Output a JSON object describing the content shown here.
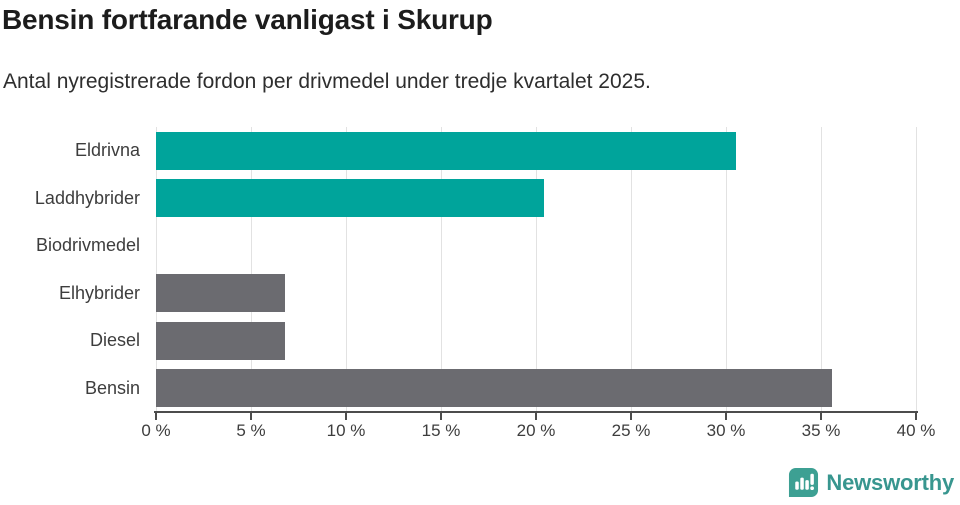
{
  "header": {
    "title": "Bensin fortfarande vanligast i Skurup",
    "subtitle": "Antal nyregistrerade fordon per drivmedel under tredje kvartalet 2025."
  },
  "chart_data": {
    "type": "bar",
    "orientation": "horizontal",
    "title": "Bensin fortfarande vanligast i Skurup",
    "subtitle": "Antal nyregistrerade fordon per drivmedel under tredje kvartalet 2025.",
    "categories": [
      "Eldrivna",
      "Laddhybrider",
      "Biodrivmedel",
      "Elhybrider",
      "Diesel",
      "Bensin"
    ],
    "values": [
      30.5,
      20.4,
      0,
      6.8,
      6.8,
      35.6
    ],
    "unit": "%",
    "xlim": [
      0,
      40
    ],
    "xticks": [
      "0 %",
      "5 %",
      "10 %",
      "15 %",
      "20 %",
      "25 %",
      "30 %",
      "35 %",
      "40 %"
    ],
    "bar_colors": [
      "#00a49b",
      "#00a49b",
      "#6b6b70",
      "#6b6b70",
      "#6b6b70",
      "#6b6b70"
    ],
    "grid": true,
    "legend": false
  },
  "colors": {
    "accent_teal": "#00a49b",
    "bar_gray": "#6b6b70",
    "gridline": "#e2e2e2",
    "axis": "#4c4c4c",
    "logo_teal": "#38968f"
  },
  "footer": {
    "brand": "Newsworthy"
  }
}
